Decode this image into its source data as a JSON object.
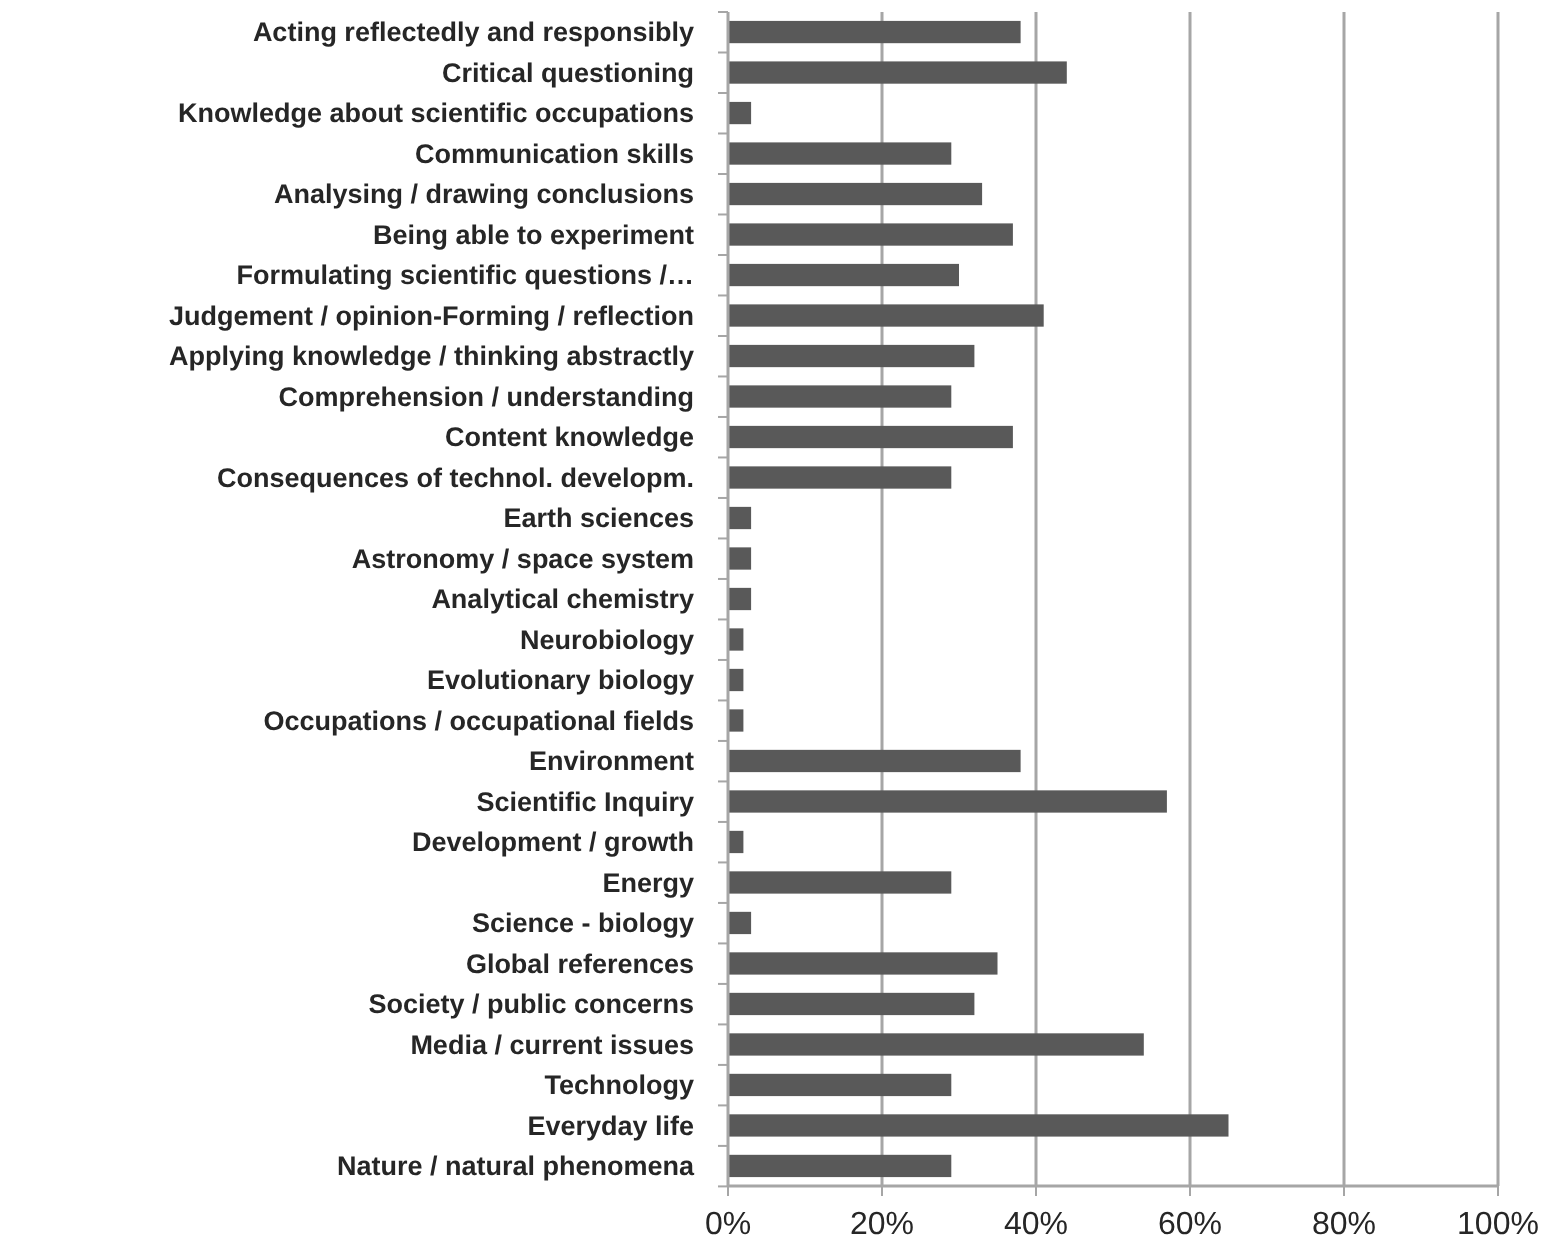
{
  "chart_data": {
    "type": "bar",
    "orientation": "horizontal",
    "categories": [
      "Acting reflectedly and responsibly",
      "Critical questioning",
      "Knowledge about scientific occupations",
      "Communication skills",
      "Analysing / drawing conclusions",
      "Being able to experiment",
      "Formulating scientific questions /…",
      "Judgement / opinion-Forming / reflection",
      "Applying knowledge / thinking abstractly",
      "Comprehension / understanding",
      "Content knowledge",
      "Consequences of technol. developm.",
      "Earth sciences",
      "Astronomy / space system",
      "Analytical chemistry",
      "Neurobiology",
      "Evolutionary biology",
      "Occupations / occupational fields",
      "Environment",
      "Scientific Inquiry",
      "Development / growth",
      "Energy",
      "Science - biology",
      "Global references",
      "Society / public concerns",
      "Media / current issues",
      "Technology",
      "Everyday life",
      "Nature / natural phenomena"
    ],
    "values": [
      38,
      44,
      3,
      29,
      33,
      37,
      30,
      41,
      32,
      29,
      37,
      29,
      3,
      3,
      3,
      2,
      2,
      2,
      38,
      57,
      2,
      29,
      3,
      35,
      32,
      54,
      29,
      65,
      29
    ],
    "color": "#595959",
    "xlim": [
      0,
      100
    ],
    "xticks": [
      {
        "value": 0,
        "label": "0%"
      },
      {
        "value": 20,
        "label": "20%"
      },
      {
        "value": 40,
        "label": "40%"
      },
      {
        "value": 60,
        "label": "60%"
      },
      {
        "value": 80,
        "label": "80%"
      },
      {
        "value": 100,
        "label": "100%"
      }
    ],
    "grid": "x"
  }
}
